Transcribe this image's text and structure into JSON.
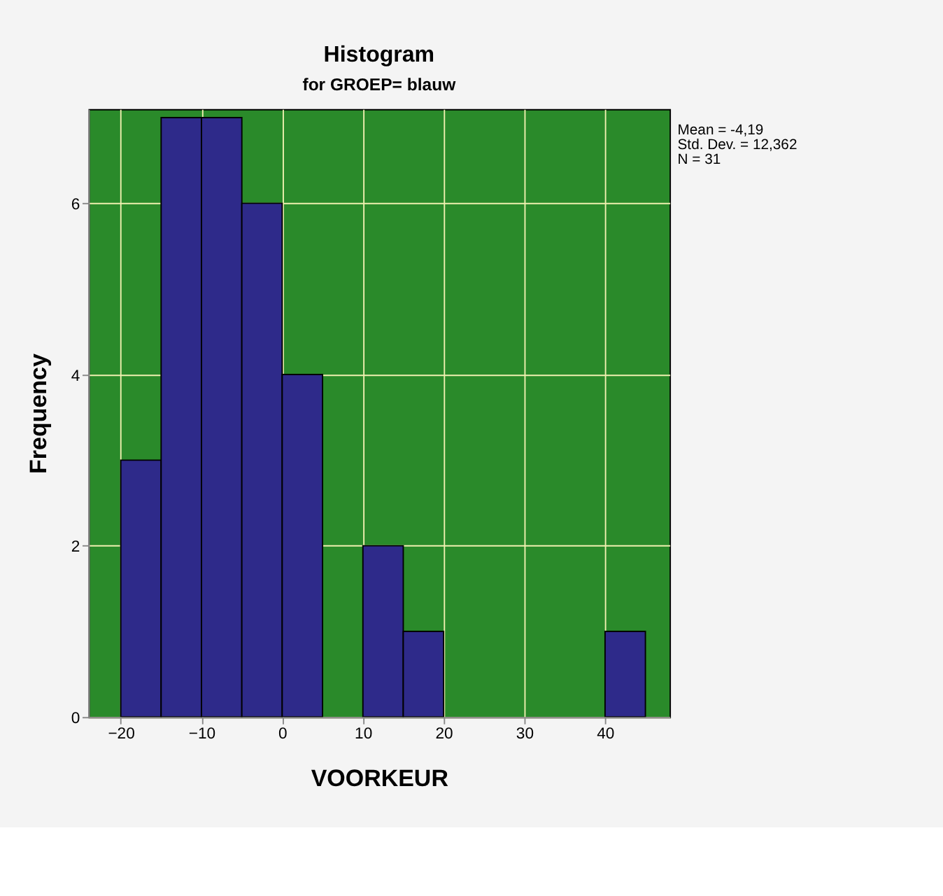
{
  "chart_data": {
    "type": "histogram",
    "title": "Histogram",
    "subtitle": "for GROEP= blauw",
    "xlabel": "VOORKEUR",
    "ylabel": "Frequency",
    "bins": [
      -20,
      -15,
      -10,
      -5,
      0,
      5,
      10,
      15,
      20,
      25,
      30,
      35,
      40,
      45
    ],
    "values": [
      3,
      7,
      7,
      6,
      4,
      0,
      2,
      1,
      0,
      0,
      0,
      0,
      1
    ],
    "color": "#2e2a8a",
    "xlim": [
      -24,
      48
    ],
    "xticks": [
      -20,
      -10,
      0,
      10,
      20,
      30,
      40
    ],
    "ylim": [
      0,
      7.1
    ],
    "yticks": [
      0,
      2,
      4,
      6
    ],
    "grid": true,
    "annotations": [
      "Mean = -4,19",
      "Std. Dev. = 12,362",
      "N = 31"
    ]
  }
}
